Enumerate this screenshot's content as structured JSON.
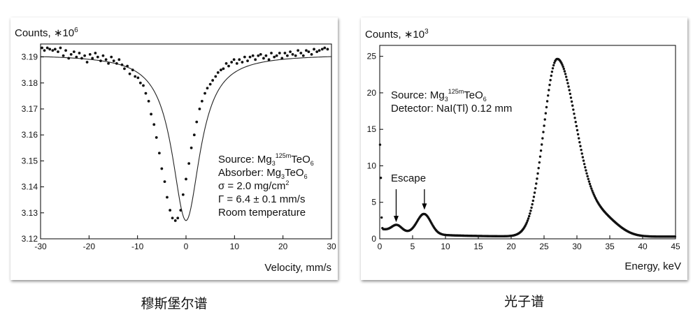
{
  "chart_data": [
    {
      "type": "scatter",
      "ylabel": "Counts, ∗10",
      "ylabel_exp": "6",
      "xlabel": "Velocity, mm/s",
      "xlim": [
        -30,
        30
      ],
      "ylim": [
        3.12,
        3.195
      ],
      "x_ticks": [
        -30,
        -20,
        -10,
        0,
        10,
        20,
        30
      ],
      "y_ticks": [
        "3.12",
        "3.13",
        "3.14",
        "3.15",
        "3.16",
        "3.17",
        "3.18",
        "3.19"
      ],
      "series": [
        {
          "x": [
            -29.7,
            -29.2,
            -28.6,
            -28.1,
            -27.5,
            -27.0,
            -26.4,
            -25.9,
            -25.3,
            -24.8,
            -24.2,
            -23.7,
            -23.1,
            -22.6,
            -22.0,
            -21.5,
            -20.9,
            -20.4,
            -19.8,
            -19.3,
            -18.7,
            -18.2,
            -17.6,
            -17.1,
            -16.5,
            -16.0,
            -15.4,
            -14.9,
            -14.3,
            -13.8,
            -13.2,
            -12.7,
            -12.1,
            -11.6,
            -11.0,
            -10.5,
            -9.9,
            -9.4,
            -8.8,
            -8.3,
            -7.7,
            -7.2,
            -6.6,
            -6.1,
            -5.5,
            -5.0,
            -4.4,
            -3.9,
            -3.3,
            -2.8,
            -2.2,
            -1.7,
            -1.1,
            -0.6,
            0.0,
            0.6,
            1.1,
            1.7,
            2.2,
            2.8,
            3.3,
            3.9,
            4.4,
            5.0,
            5.5,
            6.1,
            6.6,
            7.2,
            7.7,
            8.3,
            8.8,
            9.4,
            9.9,
            10.5,
            11.0,
            11.6,
            12.1,
            12.7,
            13.2,
            13.8,
            14.3,
            14.9,
            15.4,
            16.0,
            16.5,
            17.1,
            17.6,
            18.2,
            18.7,
            19.3,
            19.8,
            20.4,
            20.9,
            21.5,
            22.0,
            22.6,
            23.1,
            23.7,
            24.2,
            24.8,
            25.3,
            25.9,
            26.4,
            27.0,
            27.5,
            28.1,
            28.6,
            29.2
          ],
          "y": [
            3.1935,
            3.1925,
            3.1935,
            3.193,
            3.1925,
            3.193,
            3.192,
            3.1935,
            3.1905,
            3.1925,
            3.1895,
            3.191,
            3.192,
            3.19,
            3.1915,
            3.1895,
            3.1905,
            3.188,
            3.191,
            3.1895,
            3.1915,
            3.19,
            3.1885,
            3.1905,
            3.189,
            3.1875,
            3.19,
            3.1885,
            3.1875,
            3.189,
            3.187,
            3.1855,
            3.1865,
            3.1835,
            3.185,
            3.1825,
            3.182,
            3.18,
            3.179,
            3.176,
            3.173,
            3.168,
            3.164,
            3.159,
            3.153,
            3.147,
            3.142,
            3.136,
            3.131,
            3.128,
            3.127,
            3.128,
            3.131,
            3.137,
            3.143,
            3.149,
            3.155,
            3.16,
            3.165,
            3.17,
            3.173,
            3.176,
            3.178,
            3.1795,
            3.181,
            3.1825,
            3.184,
            3.185,
            3.1855,
            3.1875,
            3.1865,
            3.188,
            3.189,
            3.1875,
            3.189,
            3.188,
            3.19,
            3.1885,
            3.19,
            3.1905,
            3.189,
            3.1905,
            3.191,
            3.1895,
            3.1905,
            3.189,
            3.1915,
            3.19,
            3.1905,
            3.1915,
            3.1895,
            3.1915,
            3.1905,
            3.192,
            3.191,
            3.1905,
            3.1925,
            3.1915,
            3.1905,
            3.1925,
            3.192,
            3.191,
            3.193,
            3.192,
            3.1925,
            3.193,
            3.1935,
            3.193
          ]
        }
      ],
      "fit": {
        "baseline": 3.191,
        "depth": 0.064,
        "center": 0.0,
        "hwhm": 3.5
      },
      "annotation": {
        "source_label": "Source: Mg",
        "source_sub": "3",
        "source_sup": "125m",
        "source_rest": "TeO",
        "source_sub2": "6",
        "absorber_label": "Absorber: Mg",
        "absorber_sub": "3",
        "absorber_rest": "TeO",
        "absorber_sub2": "6",
        "sigma_line": "σ = 2.0 mg/cm",
        "sigma_sup": "2",
        "gamma_line": "Γ = 6.4 ± 0.1 mm/s",
        "temp_line": "Room temperature"
      }
    },
    {
      "type": "scatter",
      "ylabel": "Counts, ∗10",
      "ylabel_exp": "3",
      "xlabel": "Energy, keV",
      "xlim": [
        0,
        45
      ],
      "ylim": [
        0,
        26.5
      ],
      "x_ticks": [
        0,
        5,
        10,
        15,
        20,
        25,
        30,
        35,
        40,
        45
      ],
      "y_ticks": [
        "0",
        "5",
        "10",
        "15",
        "20",
        "25"
      ],
      "annotation": {
        "source_label": "Source: Mg",
        "source_sub": "3",
        "source_sup": "125m",
        "source_rest": "TeO",
        "source_sub2": "6",
        "detector_line": "Detector: NaI(Tl) 0.12 mm",
        "escape_label": "Escape",
        "arrow_x": [
          2.5,
          6.8
        ]
      }
    }
  ],
  "captions": {
    "left": "穆斯堡尔谱",
    "right": "光子谱"
  },
  "colors": {
    "points": "#111111",
    "line": "#222222",
    "axis": "#000000"
  }
}
